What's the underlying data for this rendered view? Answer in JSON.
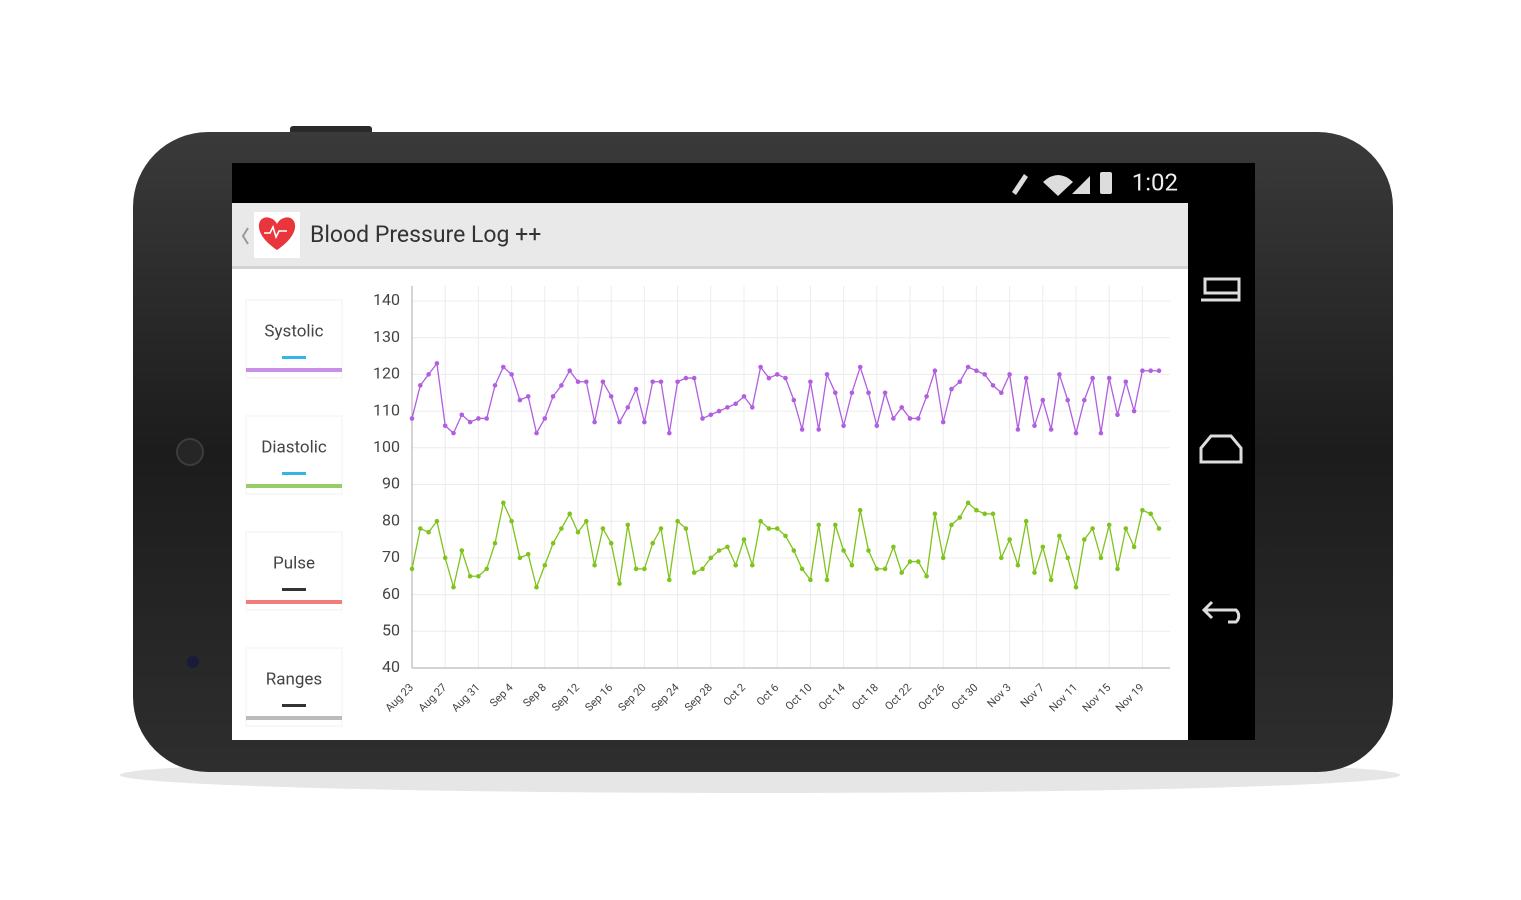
{
  "status_bar": {
    "time": "1:02"
  },
  "app_bar": {
    "title": "Blood Pressure Log ++"
  },
  "toggles": [
    {
      "label": "Systolic",
      "indicator_color": "#33b5e5",
      "color": "#c98ee8"
    },
    {
      "label": "Diastolic",
      "indicator_color": "#33b5e5",
      "color": "#99cc66"
    },
    {
      "label": "Pulse",
      "indicator_color": "#333333",
      "color": "#f07c7c"
    },
    {
      "label": "Ranges",
      "indicator_color": "#333333",
      "color": "#bbbbbb"
    }
  ],
  "chart_data": {
    "type": "line",
    "x": [
      "Aug 23",
      null,
      null,
      null,
      "Aug 27",
      null,
      null,
      null,
      "Aug 31",
      null,
      null,
      null,
      "Sep 4",
      null,
      null,
      null,
      "Sep 8",
      null,
      null,
      null,
      "Sep 12",
      null,
      null,
      null,
      "Sep 16",
      null,
      null,
      null,
      "Sep 20",
      null,
      null,
      null,
      "Sep 24",
      null,
      null,
      null,
      "Sep 28",
      null,
      null,
      null,
      "Oct 2",
      null,
      null,
      null,
      "Oct 6",
      null,
      null,
      null,
      "Oct 10",
      null,
      null,
      null,
      "Oct 14",
      null,
      null,
      null,
      "Oct 18",
      null,
      null,
      null,
      "Oct 22",
      null,
      null,
      null,
      "Oct 26",
      null,
      null,
      null,
      "Oct 30",
      null,
      null,
      null,
      "Nov 3",
      null,
      null,
      null,
      "Nov 7",
      null,
      null,
      null,
      "Nov 11",
      null,
      null,
      null,
      "Nov 15",
      null,
      null,
      null,
      "Nov 19",
      null,
      null
    ],
    "series": [
      {
        "name": "Systolic",
        "color": "#b15ee0",
        "values": [
          108,
          117,
          120,
          123,
          106,
          104,
          109,
          107,
          108,
          108,
          117,
          122,
          120,
          113,
          114,
          104,
          108,
          114,
          117,
          121,
          118,
          118,
          107,
          118,
          114,
          107,
          111,
          116,
          107,
          118,
          118,
          104,
          118,
          119,
          119,
          108,
          109,
          110,
          111,
          112,
          114,
          111,
          122,
          119,
          120,
          119,
          113,
          105,
          118,
          105,
          120,
          115,
          106,
          115,
          122,
          115,
          106,
          115,
          108,
          111,
          108,
          108,
          114,
          121,
          107,
          116,
          118,
          122,
          121,
          120,
          117,
          115,
          120,
          105,
          119,
          106,
          113,
          105,
          120,
          113,
          104,
          113,
          119,
          104,
          119,
          109,
          118,
          110,
          121,
          121,
          121
        ]
      },
      {
        "name": "Diastolic",
        "color": "#7fc31c",
        "values": [
          67,
          78,
          77,
          80,
          70,
          62,
          72,
          65,
          65,
          67,
          74,
          85,
          80,
          70,
          71,
          62,
          68,
          74,
          78,
          82,
          77,
          80,
          68,
          78,
          74,
          63,
          79,
          67,
          67,
          74,
          78,
          64,
          80,
          78,
          66,
          67,
          70,
          72,
          73,
          68,
          75,
          68,
          80,
          78,
          78,
          76,
          72,
          67,
          64,
          79,
          64,
          79,
          72,
          68,
          83,
          72,
          67,
          67,
          73,
          66,
          69,
          69,
          65,
          82,
          70,
          79,
          81,
          85,
          83,
          82,
          82,
          70,
          75,
          68,
          80,
          66,
          73,
          64,
          76,
          70,
          62,
          75,
          78,
          70,
          79,
          67,
          78,
          73,
          83,
          82,
          78
        ]
      }
    ],
    "ylim": [
      40,
      140
    ],
    "yticks": [
      40,
      50,
      60,
      70,
      80,
      90,
      100,
      110,
      120,
      130,
      140
    ],
    "grid": true
  }
}
